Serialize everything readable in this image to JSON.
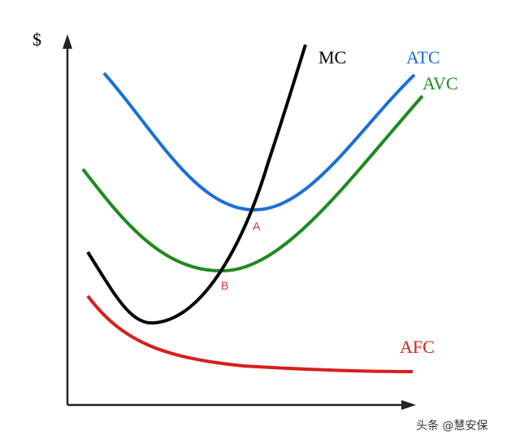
{
  "axis": {
    "y_label": "$"
  },
  "curves": [
    {
      "label": "MC",
      "color": "#000000"
    },
    {
      "label": "ATC",
      "color": "#1a6fd8"
    },
    {
      "label": "AVC",
      "color": "#1e8a1e"
    },
    {
      "label": "AFC",
      "color": "#d81e1e"
    }
  ],
  "points": [
    {
      "label": "A"
    },
    {
      "label": "B"
    }
  ],
  "watermark": "头条 @慧安保"
}
